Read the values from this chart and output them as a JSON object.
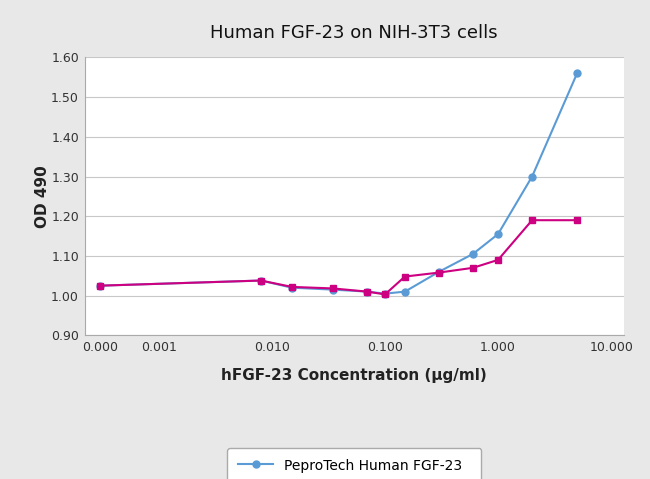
{
  "title": "Human FGF-23 on NIH-3T3 cells",
  "xlabel": "hFGF-23 Concentration (μg/ml)",
  "ylabel": "OD 490",
  "ylim": [
    0.9,
    1.6
  ],
  "yticks": [
    0.9,
    1.0,
    1.1,
    1.2,
    1.3,
    1.4,
    1.5,
    1.6
  ],
  "peprotech_x": [
    0.0003,
    0.008,
    0.015,
    0.035,
    0.07,
    0.1,
    0.15,
    0.3,
    0.6,
    1.0,
    2.0,
    5.0
  ],
  "peprotech_y": [
    1.025,
    1.038,
    1.02,
    1.015,
    1.01,
    1.005,
    1.01,
    1.06,
    1.105,
    1.155,
    1.3,
    1.56
  ],
  "competitor_x": [
    0.0003,
    0.008,
    0.015,
    0.035,
    0.07,
    0.1,
    0.15,
    0.3,
    0.6,
    1.0,
    2.0,
    5.0
  ],
  "competitor_y": [
    1.025,
    1.038,
    1.022,
    1.018,
    1.01,
    1.003,
    1.048,
    1.058,
    1.07,
    1.09,
    1.19,
    1.19
  ],
  "peprotech_color": "#5B9BD5",
  "competitor_color": "#CC0080",
  "background_color": "#e8e8e8",
  "plot_bg_color": "#ffffff",
  "xtick_labels": [
    "0.000",
    "0.001",
    "0.010",
    "0.100",
    "1.000",
    "10.000"
  ],
  "xtick_positions": [
    0.0003,
    0.001,
    0.01,
    0.1,
    1.0,
    10.0
  ],
  "xlim": [
    0.00022,
    13.0
  ]
}
